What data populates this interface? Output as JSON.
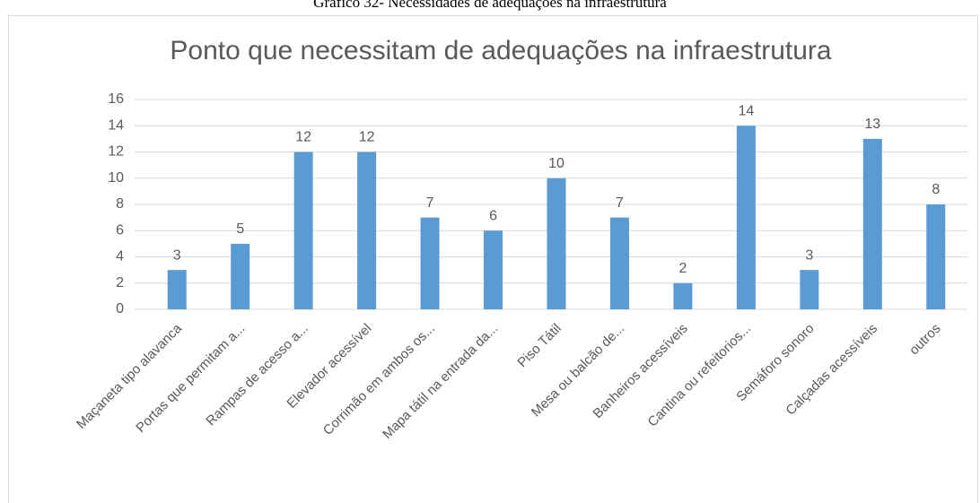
{
  "caption": "Gráfico 32- Necessidades de adequações na infraestrutura",
  "chart_data": {
    "type": "bar",
    "title": "Ponto que necessitam de adequações na infraestrutura",
    "categories": [
      "Maçaneta tipo alavanca",
      "Portas que permitam a...",
      "Rampas de acesso a...",
      "Elevador acessível",
      "Corrimão em ambos os...",
      "Mapa tátil na entrada da...",
      "Piso Tátil",
      "Mesa ou balcão de...",
      "Banheiros acessíveis",
      "Cantina ou refeitorios...",
      "Semáforo sonoro",
      "Calçadas acessíveis",
      "outros"
    ],
    "values": [
      3,
      5,
      12,
      12,
      7,
      6,
      10,
      7,
      2,
      14,
      3,
      13,
      8
    ],
    "color": "#5b9bd5",
    "ylim": [
      0,
      16
    ],
    "yticks": [
      0,
      2,
      4,
      6,
      8,
      10,
      12,
      14,
      16
    ],
    "grid": true
  }
}
